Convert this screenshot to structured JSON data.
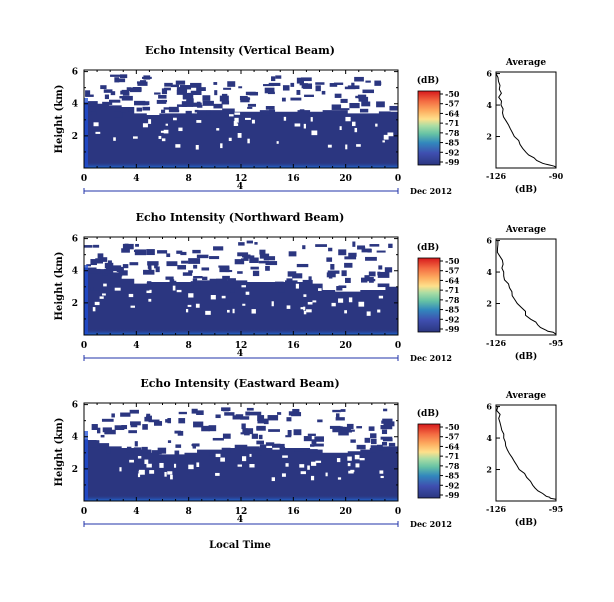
{
  "palette": {
    "background": "#ffffff",
    "echo_fill": "#2b3680",
    "surface_band": "#1f4fd8",
    "axis": "#000000",
    "colorbar": [
      "#d7191c",
      "#f46d43",
      "#fdae61",
      "#fee08b",
      "#ffffbf",
      "#abdda4",
      "#66c2a5",
      "#3288bd",
      "#2b3680"
    ]
  },
  "x_axis_label": "Local Time",
  "chart_data": [
    {
      "type": "heatmap",
      "title": "Echo Intensity (Vertical Beam)",
      "ylabel": "Height (km)",
      "y_ticks": [
        "6",
        "4",
        "2"
      ],
      "x_ticks": [
        "0",
        "4",
        "8",
        "12",
        "16",
        "20",
        "0"
      ],
      "date_marker": "4",
      "date_label": "Dec 2012",
      "colorbar_unit": "(dB)",
      "colorbar_ticks": [
        "-50",
        "-57",
        "-64",
        "-71",
        "-78",
        "-85",
        "-92",
        "-99"
      ],
      "profile_title": "Average",
      "profile_xlabel": "(dB)",
      "profile_xticks": [
        "-126",
        "-90"
      ],
      "profile_xlim": [
        -126,
        -90
      ],
      "profile_yticks": [
        "6",
        "4",
        "2"
      ],
      "echo_top_km": [
        4.1,
        4.0,
        3.9,
        3.8,
        3.4,
        3.3,
        3.4,
        3.4,
        3.4,
        3.6,
        3.6,
        3.7,
        3.5,
        3.5,
        3.6,
        3.5,
        3.5,
        3.6,
        3.5,
        3.6,
        3.6,
        3.4,
        3.4,
        3.4,
        3.5
      ],
      "profile": [
        {
          "h": 6.0,
          "db": -126
        },
        {
          "h": 5.0,
          "db": -124
        },
        {
          "h": 4.0,
          "db": -123
        },
        {
          "h": 3.0,
          "db": -120
        },
        {
          "h": 2.0,
          "db": -115
        },
        {
          "h": 1.0,
          "db": -108
        },
        {
          "h": 0.3,
          "db": -98
        },
        {
          "h": 0.05,
          "db": -90
        }
      ]
    },
    {
      "type": "heatmap",
      "title": "Echo Intensity (Northward Beam)",
      "ylabel": "Height (km)",
      "y_ticks": [
        "6",
        "4",
        "2"
      ],
      "x_ticks": [
        "0",
        "4",
        "8",
        "12",
        "16",
        "20",
        "0"
      ],
      "date_marker": "4",
      "date_label": "Dec 2012",
      "colorbar_unit": "(dB)",
      "colorbar_ticks": [
        "-50",
        "-57",
        "-64",
        "-71",
        "-78",
        "-85",
        "-92",
        "-99"
      ],
      "profile_title": "Average",
      "profile_xlabel": "(dB)",
      "profile_xticks": [
        "-126",
        "-95"
      ],
      "profile_xlim": [
        -126,
        -95
      ],
      "profile_yticks": [
        "6",
        "4",
        "2"
      ],
      "echo_top_km": [
        4.2,
        4.1,
        3.9,
        3.5,
        3.2,
        3.3,
        3.3,
        3.3,
        3.3,
        3.4,
        3.5,
        3.4,
        3.4,
        3.3,
        3.3,
        3.3,
        3.4,
        3.3,
        3.2,
        2.8,
        2.7,
        2.7,
        2.8,
        2.8,
        3.0
      ],
      "profile": [
        {
          "h": 6.0,
          "db": -125
        },
        {
          "h": 5.0,
          "db": -124
        },
        {
          "h": 4.0,
          "db": -122
        },
        {
          "h": 3.0,
          "db": -119
        },
        {
          "h": 2.0,
          "db": -115
        },
        {
          "h": 1.0,
          "db": -108
        },
        {
          "h": 0.3,
          "db": -100
        },
        {
          "h": 0.05,
          "db": -95
        }
      ]
    },
    {
      "type": "heatmap",
      "title": "Echo Intensity (Eastward Beam)",
      "ylabel": "Height (km)",
      "y_ticks": [
        "6",
        "4",
        "2"
      ],
      "x_ticks": [
        "0",
        "4",
        "8",
        "12",
        "16",
        "20",
        "0"
      ],
      "date_marker": "4",
      "date_label": "Dec 2012",
      "colorbar_unit": "(dB)",
      "colorbar_ticks": [
        "-50",
        "-57",
        "-64",
        "-71",
        "-78",
        "-85",
        "-92",
        "-99"
      ],
      "profile_title": "Average",
      "profile_xlabel": "(dB)",
      "profile_xticks": [
        "-126",
        "-95"
      ],
      "profile_xlim": [
        -126,
        -95
      ],
      "profile_yticks": [
        "6",
        "4",
        "2"
      ],
      "echo_top_km": [
        3.8,
        3.6,
        3.4,
        3.3,
        3.2,
        3.0,
        2.9,
        2.9,
        3.0,
        3.2,
        3.2,
        3.3,
        3.5,
        3.4,
        3.3,
        3.2,
        3.3,
        3.3,
        3.2,
        3.0,
        3.0,
        3.1,
        3.2,
        3.4,
        3.4
      ],
      "profile": [
        {
          "h": 6.0,
          "db": -125
        },
        {
          "h": 5.0,
          "db": -124
        },
        {
          "h": 4.0,
          "db": -122
        },
        {
          "h": 3.0,
          "db": -119
        },
        {
          "h": 2.0,
          "db": -114
        },
        {
          "h": 1.0,
          "db": -107
        },
        {
          "h": 0.3,
          "db": -100
        },
        {
          "h": 0.05,
          "db": -95
        }
      ]
    }
  ]
}
